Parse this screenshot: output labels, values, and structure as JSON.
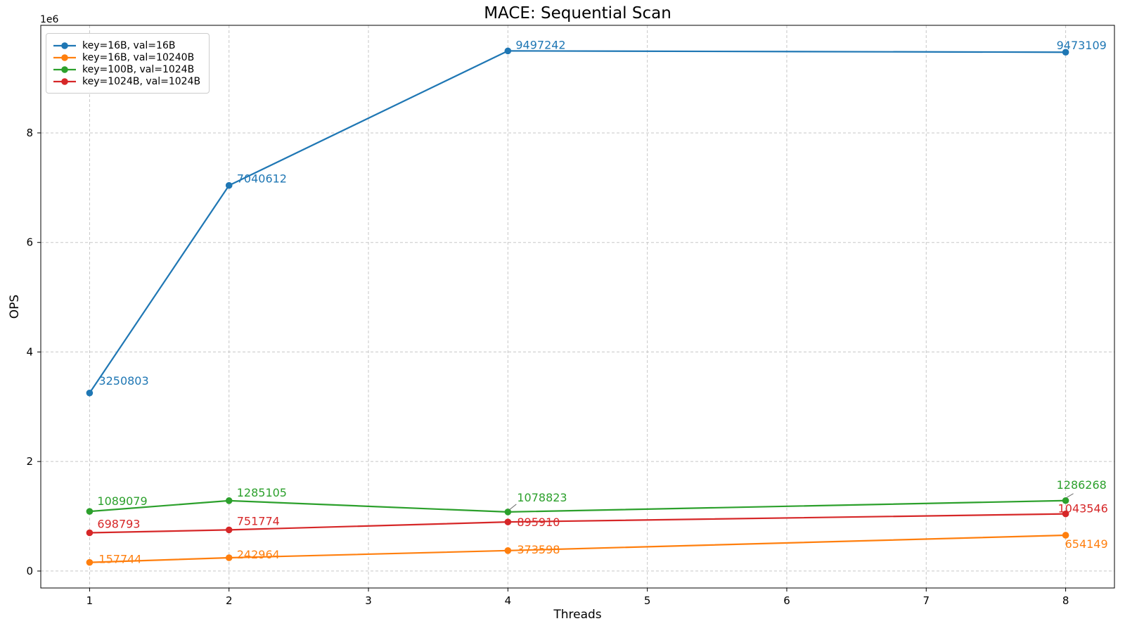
{
  "figure": {
    "title": "MACE: Sequential Scan",
    "xlabel": "Threads",
    "ylabel": "OPS",
    "offset_text": "1e6"
  },
  "chart_data": {
    "type": "line",
    "title": "MACE: Sequential Scan",
    "xlabel": "Threads",
    "ylabel": "OPS",
    "y_offset_label": "1e6",
    "grid": true,
    "grid_style": "dashed",
    "grid_color": "#c7c7c7",
    "legend_position": "upper left",
    "x": [
      1,
      2,
      4,
      8
    ],
    "xlim": [
      0.65,
      8.35
    ],
    "ylim": [
      -309231,
      9964217
    ],
    "xticks": [
      1,
      2,
      3,
      4,
      5,
      6,
      7,
      8
    ],
    "xtick_labels": [
      "1",
      "2",
      "3",
      "4",
      "5",
      "6",
      "7",
      "8"
    ],
    "yticks": [
      0,
      2000000,
      4000000,
      6000000,
      8000000
    ],
    "ytick_labels": [
      "0",
      "2",
      "4",
      "6",
      "8"
    ],
    "series": [
      {
        "name": "key=16B, val=16B",
        "color": "#1f77b4",
        "values": [
          3250803,
          7040612,
          9497242,
          9473109
        ],
        "point_labels": [
          "3250803",
          "7040612",
          "9497242",
          "9473109"
        ],
        "label_offsets": [
          [
            13,
            -12
          ],
          [
            11,
            -4
          ],
          [
            11,
            -3
          ],
          [
            -13,
            -4
          ]
        ],
        "leader_lines": [
          null,
          null,
          null,
          null
        ]
      },
      {
        "name": "key=16B, val=10240B",
        "color": "#ff7f0e",
        "values": [
          157744,
          242964,
          373598,
          654149
        ],
        "point_labels": [
          "157744",
          "242964",
          "373598",
          "654149"
        ],
        "label_offsets": [
          [
            13,
            1
          ],
          [
            11,
            1
          ],
          [
            13,
            4
          ],
          [
            -1,
            18
          ]
        ],
        "leader_lines": [
          null,
          null,
          null,
          null
        ]
      },
      {
        "name": "key=100B, val=1024B",
        "color": "#2ca02c",
        "values": [
          1089079,
          1285105,
          1078823,
          1286268
        ],
        "point_labels": [
          "1089079",
          "1285105",
          "1078823",
          "1286268"
        ],
        "label_offsets": [
          [
            11,
            -9
          ],
          [
            11,
            -6
          ],
          [
            13,
            -15
          ],
          [
            -13,
            -17
          ]
        ],
        "leader_lines": [
          null,
          null,
          [
            12,
            -11,
            2,
            -3
          ],
          [
            11,
            -10,
            1,
            -4
          ]
        ]
      },
      {
        "name": "key=1024B, val=1024B",
        "color": "#d62728",
        "values": [
          698793,
          751774,
          895910,
          1043546
        ],
        "point_labels": [
          "698793",
          "751774",
          "895910",
          "1043546"
        ],
        "label_offsets": [
          [
            11,
            -7
          ],
          [
            11,
            -7
          ],
          [
            13,
            6
          ],
          [
            -11,
            -2
          ]
        ],
        "leader_lines": [
          null,
          null,
          null,
          null
        ]
      }
    ]
  }
}
